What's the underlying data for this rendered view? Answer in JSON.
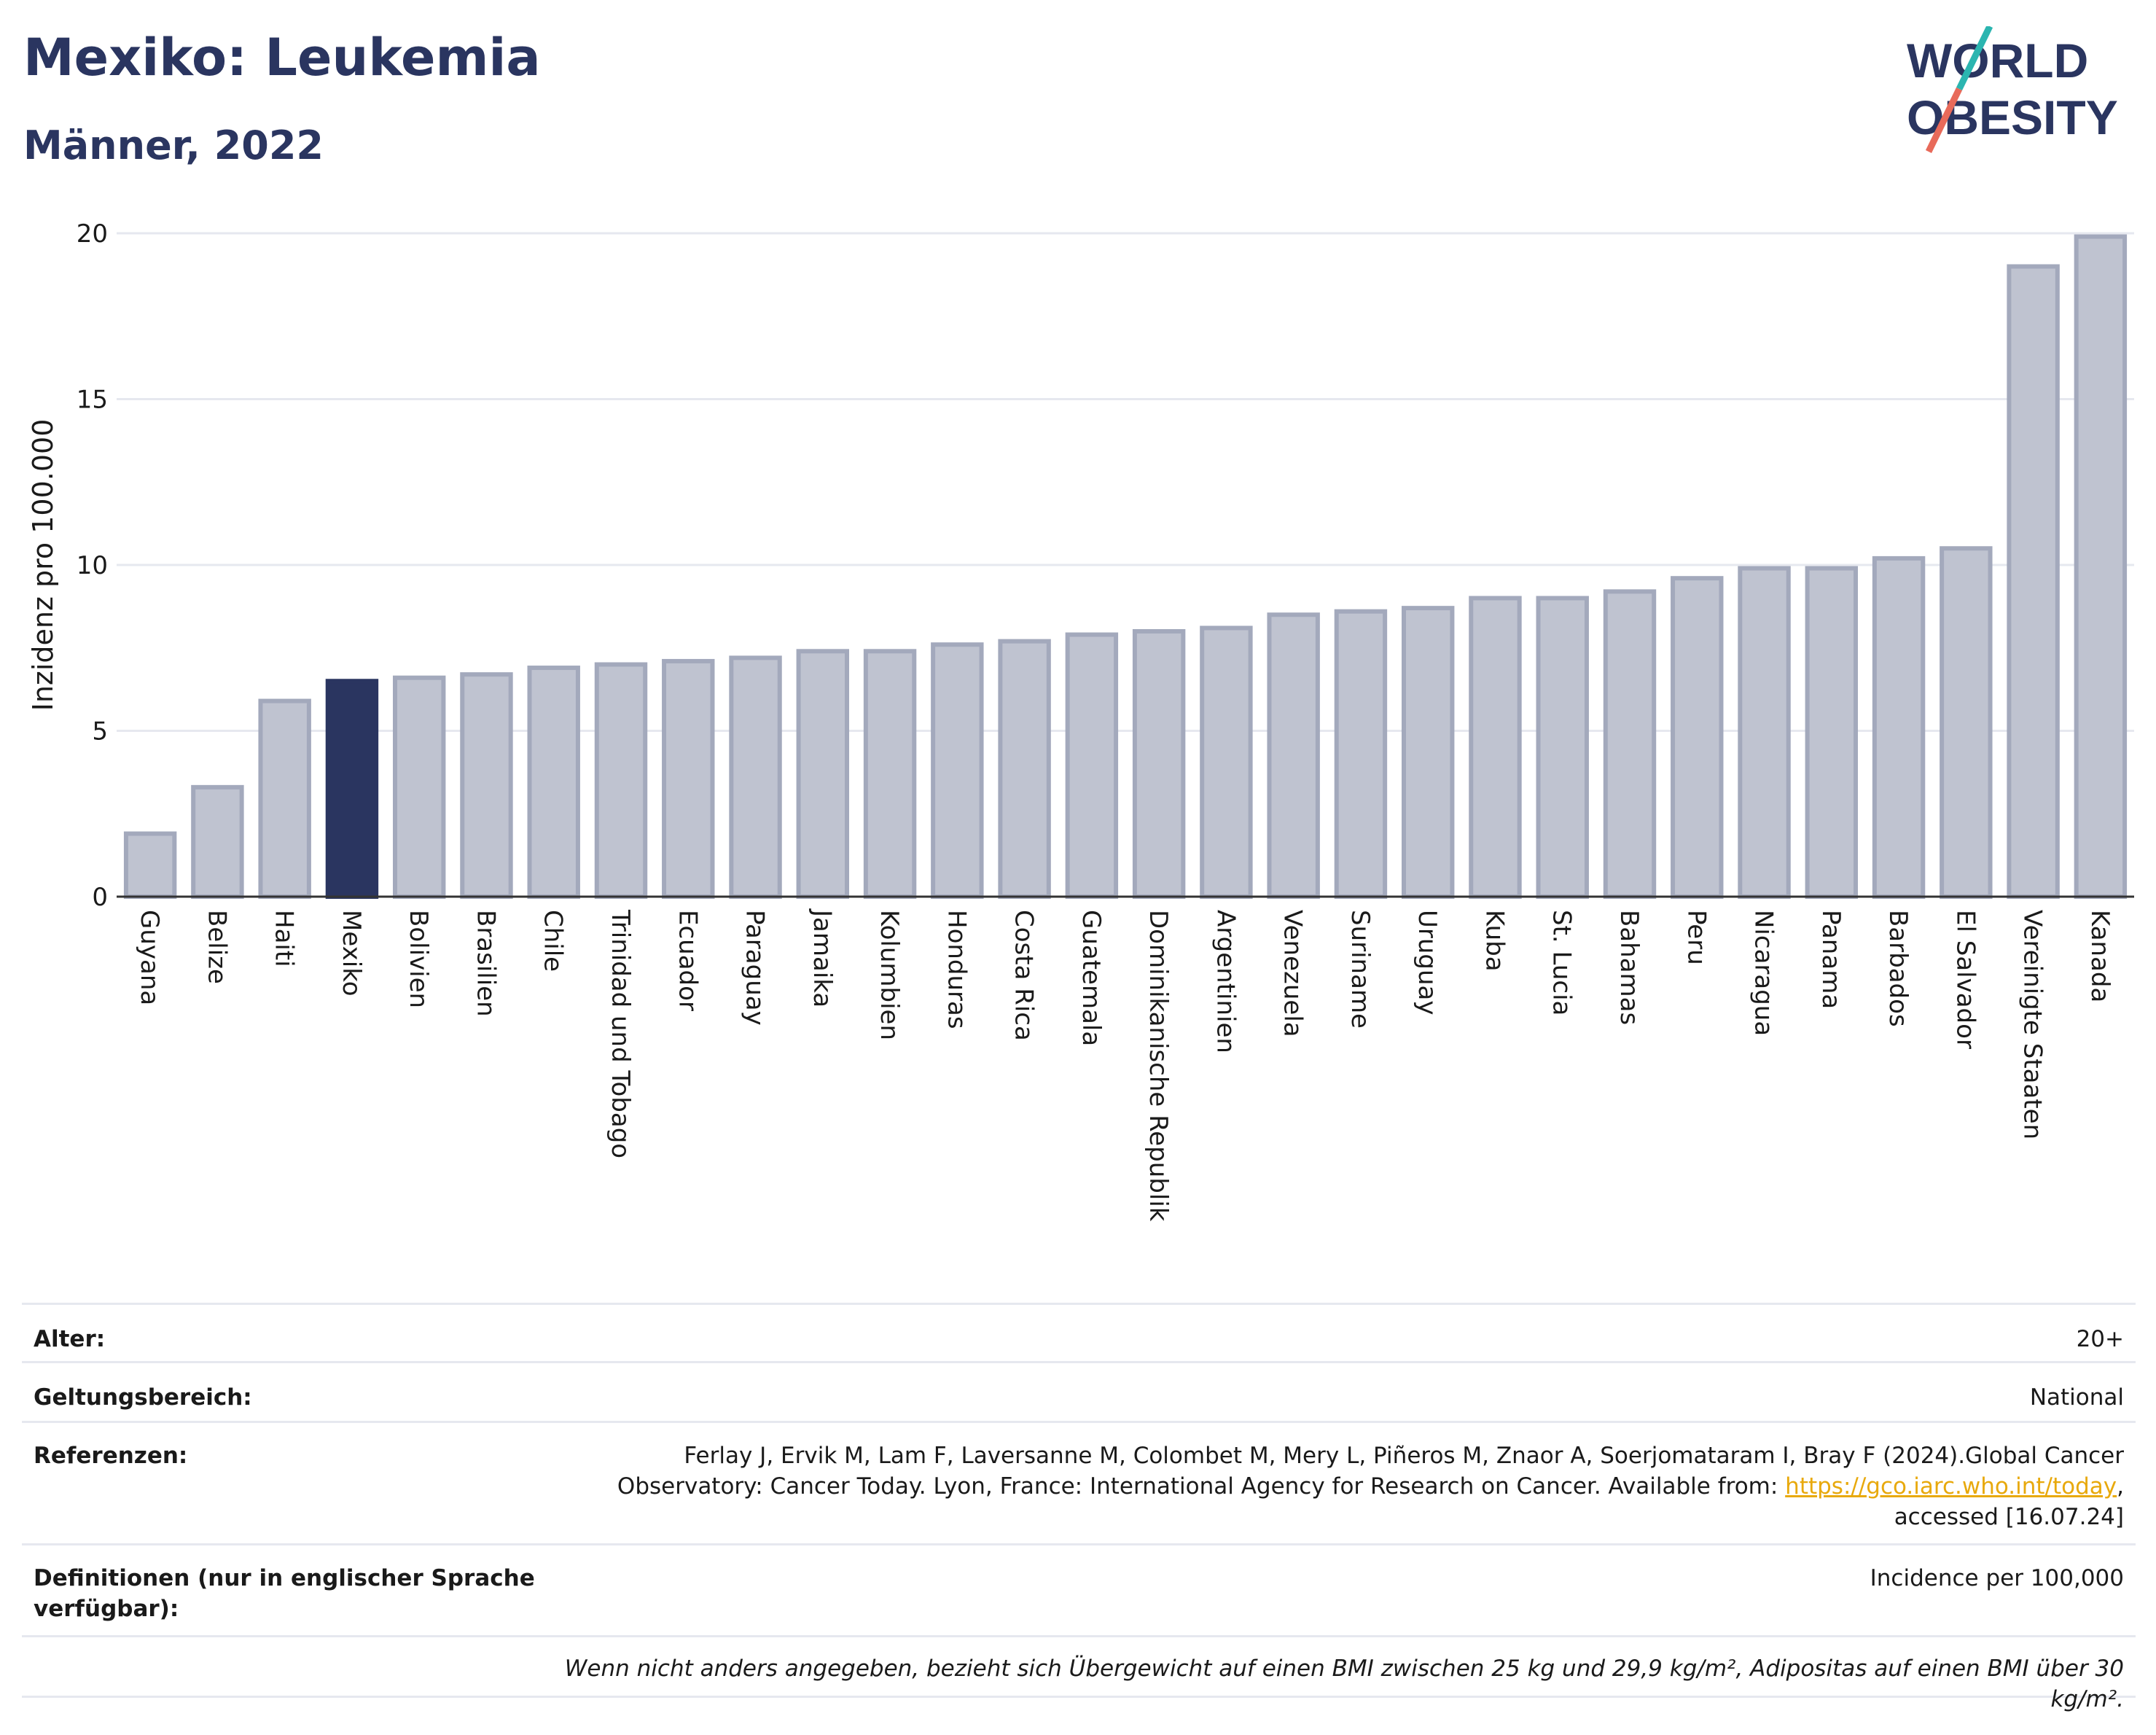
{
  "header": {
    "title": "Mexiko: Leukemia",
    "subtitle": "Männer, 2022"
  },
  "logo": {
    "line1": "WORLD",
    "line2": "OBESITY",
    "colors": {
      "text": "#2a3560",
      "slash_top": "#2bb5b0",
      "slash_bottom": "#e86a5a"
    }
  },
  "chart_data": {
    "type": "bar",
    "ylabel": "Inzidenz pro 100.000",
    "ylim": [
      0,
      20
    ],
    "yticks": [
      0,
      5,
      10,
      15,
      20
    ],
    "grid": true,
    "highlight": "Mexiko",
    "colors": {
      "bar": "#bfc3d0",
      "bar_border": "#a3a9bc",
      "highlight": "#2a3560",
      "grid": "#e6e8ef"
    },
    "categories": [
      "Guyana",
      "Belize",
      "Haiti",
      "Mexiko",
      "Bolivien",
      "Brasilien",
      "Chile",
      "Trinidad und Tobago",
      "Ecuador",
      "Paraguay",
      "Jamaika",
      "Kolumbien",
      "Honduras",
      "Costa Rica",
      "Guatemala",
      "Dominikanische Republik",
      "Argentinien",
      "Venezuela",
      "Suriname",
      "Uruguay",
      "Kuba",
      "St. Lucia",
      "Bahamas",
      "Peru",
      "Nicaragua",
      "Panama",
      "Barbados",
      "El Salvador",
      "Vereinigte Staaten",
      "Kanada"
    ],
    "values": [
      1.9,
      3.3,
      5.9,
      6.5,
      6.6,
      6.7,
      6.9,
      7.0,
      7.1,
      7.2,
      7.4,
      7.4,
      7.6,
      7.7,
      7.9,
      8.0,
      8.1,
      8.5,
      8.6,
      8.7,
      9.0,
      9.0,
      9.2,
      9.6,
      9.9,
      9.9,
      10.2,
      10.5,
      19.0,
      19.9
    ]
  },
  "info": {
    "age_label": "Alter:",
    "age_value": "20+",
    "scope_label": "Geltungsbereich:",
    "scope_value": "National",
    "ref_label": "Referenzen:",
    "ref_text1": "Ferlay J, Ervik M, Lam F, Laversanne M, Colombet M, Mery L, Piñeros M, Znaor A, Soerjomataram I, Bray F (2024).Global Cancer",
    "ref_text2": "Observatory: Cancer Today. Lyon, France: International Agency for Research on Cancer. Available from: ",
    "ref_link": "https://gco.iarc.who.int/today",
    "ref_text3": "accessed [16.07.24]",
    "def_label": "Definitionen (nur in englischer Sprache verfügbar):",
    "def_value": "Incidence per 100,000",
    "note": "Wenn nicht anders angegeben, bezieht sich Übergewicht auf einen BMI zwischen 25 kg und 29,9 kg/m², Adipositas auf einen BMI über 30 kg/m²."
  }
}
